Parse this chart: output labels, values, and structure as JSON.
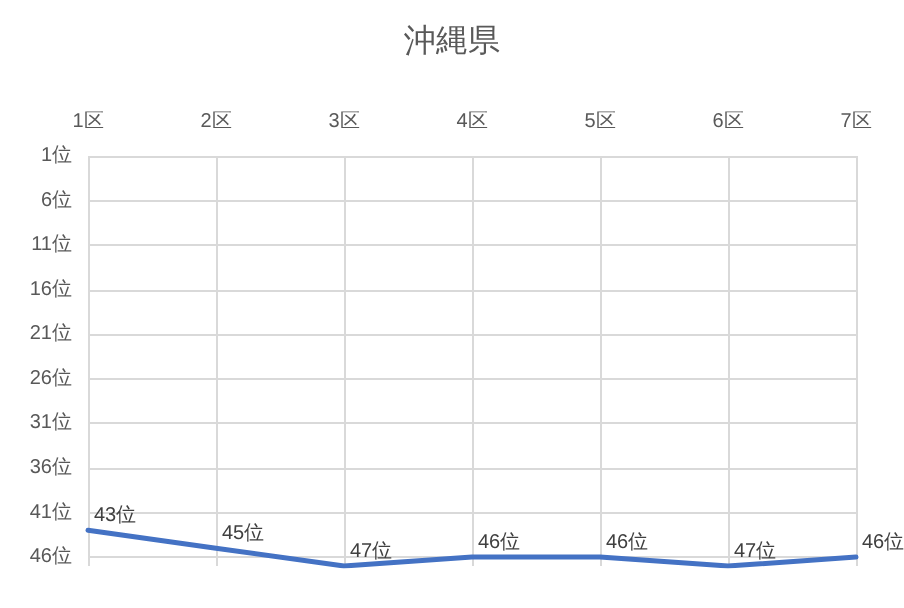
{
  "chart_data": {
    "type": "line",
    "title": "沖縄県",
    "categories": [
      "1区",
      "2区",
      "3区",
      "4区",
      "5区",
      "6区",
      "7区"
    ],
    "series": [
      {
        "color": "#4472c4",
        "values": [
          43,
          45,
          47,
          46,
          46,
          47,
          46
        ],
        "value_labels": [
          "43位",
          "45位",
          "47位",
          "46位",
          "46位",
          "47位",
          "46位"
        ]
      }
    ],
    "ylim": [
      47,
      1
    ],
    "yticks": [
      {
        "value": 1,
        "label": "1位"
      },
      {
        "value": 6,
        "label": "6位"
      },
      {
        "value": 11,
        "label": "11位"
      },
      {
        "value": 16,
        "label": "16位"
      },
      {
        "value": 21,
        "label": "21位"
      },
      {
        "value": 26,
        "label": "26位"
      },
      {
        "value": 31,
        "label": "31位"
      },
      {
        "value": 36,
        "label": "36位"
      },
      {
        "value": 41,
        "label": "41位"
      },
      {
        "value": 46,
        "label": "46位"
      }
    ],
    "grid": true,
    "marker": "none",
    "line_style": "solid"
  }
}
